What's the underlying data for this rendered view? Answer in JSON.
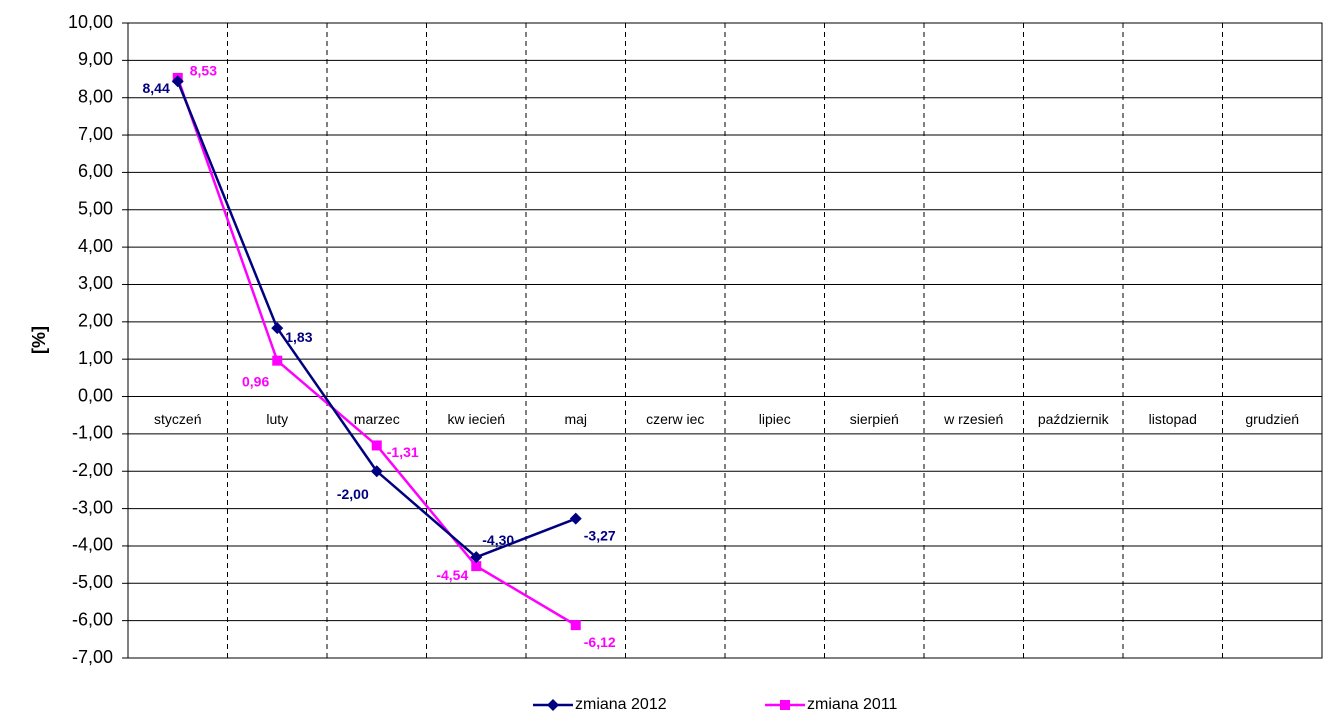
{
  "chart_data": {
    "type": "line",
    "categories": [
      "styczeń",
      "luty",
      "marzec",
      "kw iecień",
      "maj",
      "czerw iec",
      "lipiec",
      "sierpień",
      "w rzesień",
      "październik",
      "listopad",
      "grudzień"
    ],
    "y_label": "[%]",
    "series": [
      {
        "name": "zmiana 2012",
        "color": "#000080",
        "marker": "diamond",
        "values": [
          8.44,
          1.83,
          -2.0,
          -4.3,
          -3.27,
          null,
          null,
          null,
          null,
          null,
          null,
          null
        ],
        "value_labels": [
          "8,44",
          "1,83",
          "-2,00",
          "-4,30",
          "-3,27",
          null,
          null,
          null,
          null,
          null,
          null,
          null
        ]
      },
      {
        "name": "zmiana 2011",
        "color": "#ff00ff",
        "marker": "square",
        "values": [
          8.53,
          0.96,
          -1.31,
          -4.54,
          -6.12,
          null,
          null,
          null,
          null,
          null,
          null,
          null
        ],
        "value_labels": [
          "8,53",
          "0,96",
          "-1,31",
          "-4,54",
          "-6,12",
          null,
          null,
          null,
          null,
          null,
          null,
          null
        ]
      }
    ],
    "ylim": [
      -7,
      10
    ],
    "yticks": [
      {
        "value": -7,
        "label": "-7,00"
      },
      {
        "value": -6,
        "label": "-6,00"
      },
      {
        "value": -5,
        "label": "-5,00"
      },
      {
        "value": -4,
        "label": "-4,00"
      },
      {
        "value": -3,
        "label": "-3,00"
      },
      {
        "value": -2,
        "label": "-2,00"
      },
      {
        "value": -1,
        "label": "-1,00"
      },
      {
        "value": 0,
        "label": "0,00"
      },
      {
        "value": 1,
        "label": "1,00"
      },
      {
        "value": 2,
        "label": "2,00"
      },
      {
        "value": 3,
        "label": "3,00"
      },
      {
        "value": 4,
        "label": "4,00"
      },
      {
        "value": 5,
        "label": "5,00"
      },
      {
        "value": 6,
        "label": "6,00"
      },
      {
        "value": 7,
        "label": "7,00"
      },
      {
        "value": 8,
        "label": "8,00"
      },
      {
        "value": 9,
        "label": "9,00"
      },
      {
        "value": 10,
        "label": "10,00"
      }
    ],
    "grid": true
  }
}
